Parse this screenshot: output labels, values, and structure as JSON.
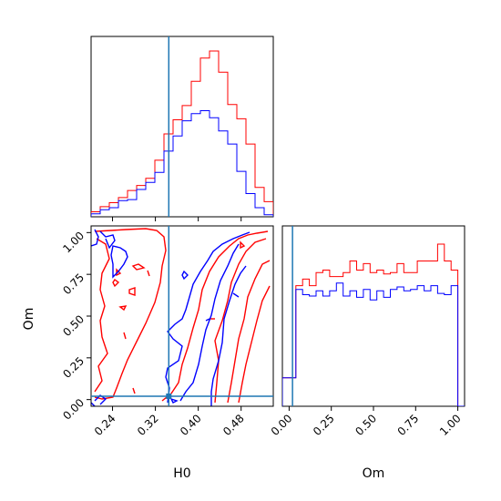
{
  "colors": {
    "red": "#ff0000",
    "blue": "#0000ff",
    "truth": "#1f77b4",
    "axis": "#000000"
  },
  "chart_data": {
    "type": "corner",
    "parameters": [
      "H0",
      "Om"
    ],
    "truth": {
      "H0": 0.345,
      "Om": 0.02
    },
    "series": [
      {
        "color": "red"
      },
      {
        "color": "blue"
      }
    ],
    "h0_hist": {
      "xlim": [
        0.2,
        0.54
      ],
      "edges": [
        0.2,
        0.217,
        0.234,
        0.251,
        0.268,
        0.285,
        0.302,
        0.319,
        0.336,
        0.353,
        0.37,
        0.387,
        0.404,
        0.421,
        0.438,
        0.455,
        0.472,
        0.489,
        0.506,
        0.523,
        0.54
      ],
      "red": [
        5,
        10,
        14,
        19,
        26,
        31,
        38,
        56,
        82,
        96,
        110,
        134,
        157,
        164,
        143,
        111,
        97,
        72,
        29,
        15
      ],
      "blue": [
        3,
        7,
        9,
        16,
        17,
        27,
        34,
        44,
        65,
        80,
        95,
        102,
        105,
        98,
        85,
        72,
        45,
        23,
        9,
        2
      ]
    },
    "om_hist": {
      "xlim": [
        -0.04,
        1.04
      ],
      "edges": [
        -0.04,
        0.0,
        0.04,
        0.08,
        0.12,
        0.16,
        0.2,
        0.24,
        0.28,
        0.32,
        0.36,
        0.4,
        0.44,
        0.48,
        0.52,
        0.56,
        0.6,
        0.64,
        0.68,
        0.72,
        0.76,
        0.8,
        0.84,
        0.88,
        0.92,
        0.96,
        1.0,
        1.04
      ],
      "red": [
        22,
        22,
        93,
        98,
        93,
        103,
        105,
        100,
        100,
        103,
        112,
        105,
        110,
        103,
        105,
        102,
        103,
        110,
        103,
        103,
        112,
        112,
        112,
        125,
        112,
        105,
        0
      ],
      "blue": [
        22,
        22,
        90,
        86,
        85,
        89,
        85,
        89,
        95,
        85,
        89,
        84,
        90,
        82,
        89,
        84,
        90,
        92,
        89,
        90,
        93,
        89,
        93,
        87,
        86,
        93,
        0
      ]
    },
    "h0_ticks": [
      "0.24",
      "0.32",
      "0.40",
      "0.48"
    ],
    "om_ticks": [
      "0.00",
      "0.25",
      "0.50",
      "0.75",
      "1.00"
    ],
    "scatter_ylim": [
      -0.04,
      1.04
    ],
    "xlabel": "H0",
    "ylabel": "Om",
    "om_xlabel": "Om"
  }
}
